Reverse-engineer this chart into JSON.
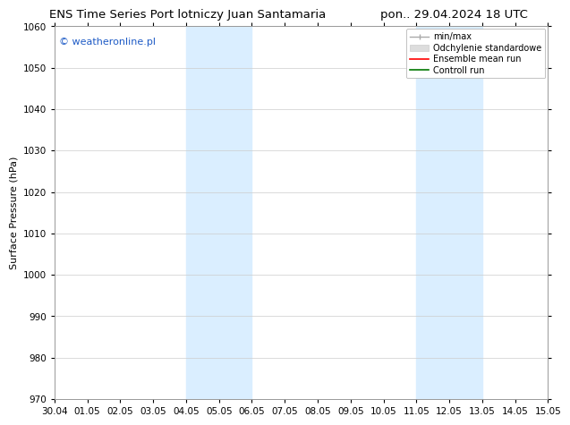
{
  "title_left": "ENS Time Series Port lotniczy Juan Santamaria",
  "title_right": "pon.. 29.04.2024 18 UTC",
  "xlabel_ticks": [
    "30.04",
    "01.05",
    "02.05",
    "03.05",
    "04.05",
    "05.05",
    "06.05",
    "07.05",
    "08.05",
    "09.05",
    "10.05",
    "11.05",
    "12.05",
    "13.05",
    "14.05",
    "15.05"
  ],
  "ylabel": "Surface Pressure (hPa)",
  "ylim": [
    970,
    1060
  ],
  "yticks": [
    970,
    980,
    990,
    1000,
    1010,
    1020,
    1030,
    1040,
    1050,
    1060
  ],
  "xlim": [
    0,
    15
  ],
  "xtick_positions": [
    0,
    1,
    2,
    3,
    4,
    5,
    6,
    7,
    8,
    9,
    10,
    11,
    12,
    13,
    14,
    15
  ],
  "shaded_regions": [
    {
      "xmin": 4.0,
      "xmax": 6.0
    },
    {
      "xmin": 11.0,
      "xmax": 13.0
    }
  ],
  "shaded_color": "#daeeff",
  "watermark_text": "© weatheronline.pl",
  "watermark_color": "#1e5bc6",
  "legend_entries": [
    {
      "label": "min/max",
      "color": "#aaaaaa",
      "linewidth": 1.0,
      "linestyle": "-"
    },
    {
      "label": "Odchylenie standardowe",
      "color": "#cccccc",
      "linewidth": 8,
      "linestyle": "-"
    },
    {
      "label": "Ensemble mean run",
      "color": "#ff0000",
      "linewidth": 1.2,
      "linestyle": "-"
    },
    {
      "label": "Controll run",
      "color": "#007700",
      "linewidth": 1.2,
      "linestyle": "-"
    }
  ],
  "bg_color": "#ffffff",
  "grid_color": "#cccccc",
  "title_fontsize": 9.5,
  "watermark_fontsize": 8,
  "axis_label_fontsize": 8,
  "tick_fontsize": 7.5,
  "legend_fontsize": 7
}
